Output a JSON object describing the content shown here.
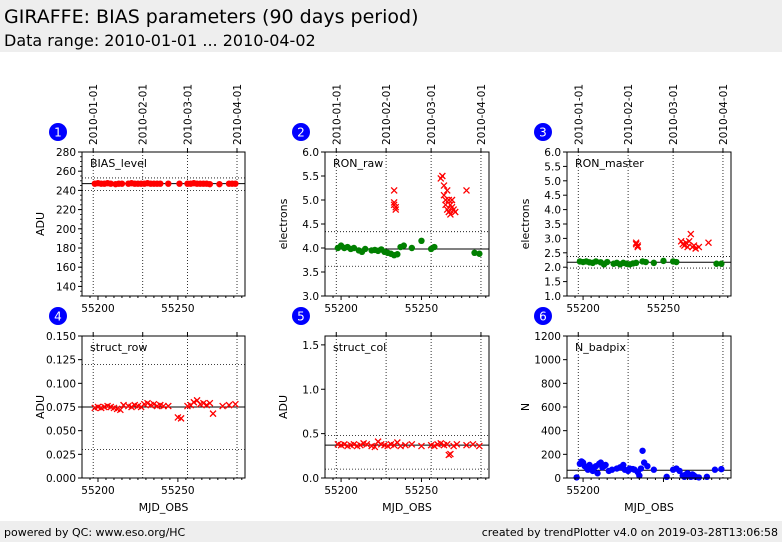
{
  "page": {
    "title": "GIRAFFE: BIAS parameters (90 days period)",
    "subtitle": "Data range: 2010-01-01 ... 2010-04-02",
    "footer_left": "powered by QC: www.eso.org/HC",
    "footer_right": "created by trendPlotter v4.0 on 2019-03-28T13:06:58"
  },
  "colors": {
    "red": "#ff0000",
    "green": "#008000",
    "blue": "#0000ff",
    "badge": "#0000ff"
  },
  "chart_data": [
    {
      "type": "scatter",
      "index": "1",
      "label": "BIAS_level",
      "ylabel": "ADU",
      "xlabel": "",
      "xlim": [
        55190,
        55292
      ],
      "ylim": [
        130,
        280
      ],
      "yticks": [
        140,
        160,
        180,
        200,
        220,
        240,
        260,
        280
      ],
      "ytick_labels": [
        "140",
        "160",
        "180",
        "200",
        "220",
        "240",
        "260",
        "280"
      ],
      "minor_step": 5,
      "xticks": [
        55200,
        55250
      ],
      "xtick_labels": [
        "55200",
        "55250"
      ],
      "show_xticklabels": true,
      "top_ticks": [
        55197,
        55228,
        55256,
        55287
      ],
      "top_tick_labels": [
        "2010-01-01",
        "2010-02-01",
        "2010-03-01",
        "2010-04-01"
      ],
      "hlines_solid": [
        247
      ],
      "hlines_dotted": [
        240,
        253
      ],
      "series": [
        {
          "marker": "dot",
          "color": "red",
          "x": [
            55198,
            55200,
            55202,
            55204,
            55206,
            55208,
            55211,
            55213,
            55215,
            55219,
            55221,
            55223,
            55225,
            55227,
            55229,
            55231,
            55233,
            55235,
            55237,
            55239,
            55244,
            55251,
            55256,
            55258,
            55260,
            55262,
            55264,
            55266,
            55268,
            55270,
            55276,
            55282,
            55284,
            55286
          ],
          "y": [
            247,
            247.5,
            247,
            247,
            247.5,
            247,
            246.5,
            247,
            247,
            247,
            247.5,
            247,
            247,
            247,
            247,
            247.5,
            247,
            247,
            247,
            247,
            247,
            247,
            247,
            247,
            247.5,
            247,
            247,
            247,
            247,
            246.5,
            246.5,
            247,
            247,
            247
          ]
        }
      ]
    },
    {
      "type": "scatter",
      "index": "2",
      "label": "RON_raw",
      "ylabel": "electrons",
      "xlabel": "",
      "xlim": [
        55190,
        55292
      ],
      "ylim": [
        3.0,
        6.0
      ],
      "yticks": [
        3.0,
        3.5,
        4.0,
        4.5,
        5.0,
        5.5,
        6.0
      ],
      "ytick_labels": [
        "3.0",
        "3.5",
        "4.0",
        "4.5",
        "5.0",
        "5.5",
        "6.0"
      ],
      "minor_step": 0,
      "xticks": [
        55200,
        55250
      ],
      "xtick_labels": [
        "55200",
        "55250"
      ],
      "show_xticklabels": true,
      "top_ticks": [
        55197,
        55228,
        55256,
        55287
      ],
      "top_tick_labels": [
        "2010-01-01",
        "2010-02-01",
        "2010-03-01",
        "2010-04-01"
      ],
      "hlines_solid": [
        3.98
      ],
      "hlines_dotted": [
        3.62,
        4.34
      ],
      "series": [
        {
          "marker": "dot",
          "color": "green",
          "x": [
            55198,
            55200,
            55202,
            55204,
            55206,
            55208,
            55211,
            55213,
            55215,
            55219,
            55221,
            55223,
            55225,
            55227,
            55229,
            55231,
            55233,
            55235,
            55237,
            55239,
            55244,
            55250,
            55256,
            55258,
            55283,
            55286
          ],
          "y": [
            4.0,
            4.05,
            4.0,
            4.02,
            3.98,
            4.0,
            3.95,
            3.92,
            3.98,
            3.95,
            3.96,
            3.94,
            3.97,
            3.92,
            3.9,
            3.88,
            3.85,
            3.87,
            4.02,
            4.05,
            4.0,
            4.15,
            3.98,
            4.02,
            3.9,
            3.88
          ]
        },
        {
          "marker": "x",
          "color": "red",
          "x": [
            55233,
            55233,
            55234,
            55234,
            55233,
            55262,
            55263,
            55264,
            55264,
            55265,
            55265,
            55266,
            55266,
            55267,
            55267,
            55268,
            55268,
            55269,
            55269,
            55270,
            55271,
            55278
          ],
          "y": [
            5.2,
            4.9,
            4.85,
            4.8,
            4.95,
            5.45,
            5.5,
            5.1,
            5.3,
            4.9,
            5.0,
            5.2,
            4.8,
            4.75,
            5.0,
            4.9,
            4.7,
            4.85,
            5.0,
            4.8,
            4.75,
            5.2
          ]
        }
      ]
    },
    {
      "type": "scatter",
      "index": "3",
      "label": "RON_master",
      "ylabel": "electrons",
      "xlabel": "",
      "xlim": [
        55190,
        55292
      ],
      "ylim": [
        1.0,
        6.0
      ],
      "yticks": [
        1.0,
        1.5,
        2.0,
        2.5,
        3.0,
        3.5,
        4.0,
        4.5,
        5.0,
        5.5,
        6.0
      ],
      "ytick_labels": [
        "1.0",
        "1.5",
        "2.0",
        "2.5",
        "3.0",
        "3.5",
        "4.0",
        "4.5",
        "5.0",
        "5.5",
        "6.0"
      ],
      "minor_step": 0,
      "xticks": [
        55200,
        55250
      ],
      "xtick_labels": [
        "55200",
        "55250"
      ],
      "show_xticklabels": true,
      "top_ticks": [
        55197,
        55228,
        55256,
        55287
      ],
      "top_tick_labels": [
        "2010-01-01",
        "2010-02-01",
        "2010-03-01",
        "2010-04-01"
      ],
      "hlines_solid": [
        2.17
      ],
      "hlines_dotted": [
        1.97,
        2.37
      ],
      "series": [
        {
          "marker": "dot",
          "color": "green",
          "x": [
            55198,
            55200,
            55202,
            55204,
            55206,
            55208,
            55211,
            55213,
            55215,
            55219,
            55221,
            55223,
            55225,
            55227,
            55229,
            55231,
            55233,
            55237,
            55239,
            55244,
            55250,
            55256,
            55258,
            55283,
            55286
          ],
          "y": [
            2.2,
            2.18,
            2.2,
            2.17,
            2.15,
            2.2,
            2.17,
            2.1,
            2.18,
            2.12,
            2.15,
            2.1,
            2.15,
            2.12,
            2.1,
            2.13,
            2.15,
            2.2,
            2.18,
            2.15,
            2.22,
            2.2,
            2.18,
            2.12,
            2.12
          ]
        },
        {
          "marker": "x",
          "color": "red",
          "x": [
            55233,
            55234,
            55234,
            55233,
            55261,
            55262,
            55263,
            55264,
            55265,
            55266,
            55267,
            55268,
            55269,
            55270,
            55272,
            55278
          ],
          "y": [
            2.8,
            2.75,
            2.7,
            2.85,
            2.9,
            2.8,
            2.75,
            2.85,
            2.7,
            2.9,
            3.15,
            2.7,
            2.75,
            2.65,
            2.7,
            2.85
          ]
        }
      ]
    },
    {
      "type": "scatter",
      "index": "4",
      "label": "struct_row",
      "ylabel": "ADU",
      "xlabel": "MJD_OBS",
      "xlim": [
        55190,
        55292
      ],
      "ylim": [
        0.0,
        0.15
      ],
      "yticks": [
        0.0,
        0.025,
        0.05,
        0.075,
        0.1,
        0.125,
        0.15
      ],
      "ytick_labels": [
        "0.000",
        "0.025",
        "0.050",
        "0.075",
        "0.100",
        "0.125",
        "0.150"
      ],
      "minor_step": 0,
      "xticks": [
        55200,
        55250
      ],
      "xtick_labels": [
        "55200",
        "55250"
      ],
      "show_xticklabels": true,
      "top_ticks": [
        55197,
        55228,
        55256,
        55287
      ],
      "top_tick_labels": [],
      "hlines_solid": [
        0.075
      ],
      "hlines_dotted": [
        0.03,
        0.12
      ],
      "series": [
        {
          "marker": "x",
          "color": "red",
          "x": [
            55198,
            55200,
            55202,
            55204,
            55206,
            55208,
            55210,
            55212,
            55214,
            55216,
            55219,
            55221,
            55223,
            55225,
            55227,
            55229,
            55231,
            55233,
            55235,
            55237,
            55239,
            55241,
            55244,
            55250,
            55252,
            55256,
            55258,
            55260,
            55262,
            55264,
            55266,
            55268,
            55270,
            55272,
            55278,
            55282,
            55286
          ],
          "y": [
            0.074,
            0.075,
            0.074,
            0.075,
            0.076,
            0.075,
            0.074,
            0.073,
            0.072,
            0.077,
            0.076,
            0.075,
            0.077,
            0.076,
            0.075,
            0.078,
            0.079,
            0.077,
            0.078,
            0.076,
            0.077,
            0.076,
            0.076,
            0.064,
            0.063,
            0.076,
            0.077,
            0.08,
            0.082,
            0.078,
            0.079,
            0.077,
            0.079,
            0.068,
            0.076,
            0.077,
            0.078
          ]
        }
      ]
    },
    {
      "type": "scatter",
      "index": "5",
      "label": "struct_col",
      "ylabel": "ADU",
      "xlabel": "MJD_OBS",
      "xlim": [
        55190,
        55292
      ],
      "ylim": [
        0.0,
        1.6
      ],
      "yticks": [
        0.0,
        0.5,
        1.0,
        1.5
      ],
      "ytick_labels": [
        "0.0",
        "0.5",
        "1.0",
        "1.5"
      ],
      "minor_step": 0,
      "xticks": [
        55200,
        55250
      ],
      "xtick_labels": [
        "55200",
        "55250"
      ],
      "show_xticklabels": true,
      "top_ticks": [
        55197,
        55228,
        55256,
        55287
      ],
      "top_tick_labels": [],
      "hlines_solid": [
        0.37
      ],
      "hlines_dotted": [
        0.1,
        0.48
      ],
      "series": [
        {
          "marker": "x",
          "color": "red",
          "x": [
            55198,
            55200,
            55202,
            55204,
            55206,
            55208,
            55210,
            55212,
            55214,
            55216,
            55219,
            55221,
            55223,
            55225,
            55227,
            55229,
            55231,
            55233,
            55235,
            55237,
            55240,
            55244,
            55250,
            55256,
            55258,
            55260,
            55262,
            55264,
            55266,
            55267,
            55268,
            55270,
            55272,
            55278,
            55282,
            55286
          ],
          "y": [
            0.38,
            0.37,
            0.38,
            0.36,
            0.37,
            0.38,
            0.36,
            0.37,
            0.39,
            0.38,
            0.36,
            0.35,
            0.41,
            0.38,
            0.37,
            0.36,
            0.38,
            0.37,
            0.4,
            0.36,
            0.37,
            0.38,
            0.36,
            0.37,
            0.36,
            0.38,
            0.39,
            0.37,
            0.38,
            0.26,
            0.27,
            0.36,
            0.38,
            0.37,
            0.38,
            0.36
          ]
        }
      ]
    },
    {
      "type": "scatter",
      "index": "6",
      "label": "N_badpix",
      "ylabel": "N",
      "xlabel": "MJD_OBS",
      "xlim": [
        55190,
        55292
      ],
      "ylim": [
        0,
        1200
      ],
      "yticks": [
        0,
        200,
        400,
        600,
        800,
        1000,
        1200
      ],
      "ytick_labels": [
        "0",
        "200",
        "400",
        "600",
        "800",
        "1000",
        "1200"
      ],
      "minor_step": 0,
      "xticks": [
        55200
      ],
      "xtick_labels": [
        "55200"
      ],
      "show_xticklabels": true,
      "top_ticks": [
        55197,
        55228,
        55256,
        55287
      ],
      "top_tick_labels": [],
      "hlines_solid": [
        65
      ],
      "hlines_dotted": [],
      "series": [
        {
          "marker": "dot",
          "color": "blue",
          "x": [
            55196,
            55198,
            55199,
            55200,
            55201,
            55202,
            55203,
            55204,
            55205,
            55206,
            55207,
            55208,
            55209,
            55210,
            55211,
            55212,
            55213,
            55214,
            55216,
            55218,
            55221,
            55223,
            55225,
            55226,
            55228,
            55229,
            55231,
            55232,
            55234,
            55235,
            55236,
            55237,
            55238,
            55240,
            55244,
            55252,
            55256,
            55258,
            55260,
            55262,
            55263,
            55264,
            55265,
            55266,
            55267,
            55268,
            55269,
            55270,
            55272,
            55277,
            55282,
            55286
          ],
          "y": [
            5,
            120,
            140,
            130,
            100,
            90,
            70,
            110,
            80,
            60,
            90,
            100,
            40,
            120,
            130,
            90,
            100,
            110,
            60,
            70,
            80,
            90,
            110,
            70,
            60,
            80,
            75,
            70,
            50,
            20,
            80,
            230,
            130,
            100,
            70,
            10,
            70,
            80,
            60,
            20,
            10,
            30,
            40,
            20,
            10,
            30,
            20,
            10,
            5,
            10,
            70,
            75
          ]
        }
      ]
    }
  ]
}
